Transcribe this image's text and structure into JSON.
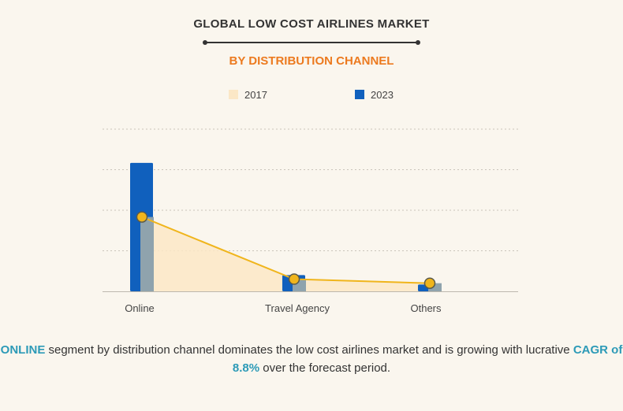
{
  "header": {
    "title": "GLOBAL LOW COST AIRLINES MARKET",
    "subtitle": "BY DISTRIBUTION CHANNEL"
  },
  "chart_data": {
    "type": "bar",
    "categories": [
      "Online",
      "Travel Agency",
      "Others"
    ],
    "series": [
      {
        "name": "2017",
        "values": [
          55,
          9,
          6
        ],
        "color": "#fbe7c6",
        "line_color": "#f0b51c"
      },
      {
        "name": "2023",
        "values": [
          95,
          12,
          5
        ],
        "color": "#1060bd"
      }
    ],
    "ylim": [
      0,
      120
    ],
    "grid": true,
    "legend": "top-center",
    "title": "GLOBAL LOW COST AIRLINES MARKET",
    "subtitle": "BY DISTRIBUTION CHANNEL"
  },
  "caption": {
    "part1": "ONLINE",
    "part2": " segment by distribution channel dominates the low cost airlines market and is growing with lucrative ",
    "part3": "CAGR of 8.8%",
    "part4": " over the forecast period."
  },
  "colors": {
    "accent_orange": "#ec7a1f",
    "highlight_teal": "#2c9ab7",
    "bar_2023": "#1060bd",
    "bar_overlay": "#8fa3ad",
    "area_2017": "#fbe7c6",
    "line_2017": "#f0b51c"
  }
}
